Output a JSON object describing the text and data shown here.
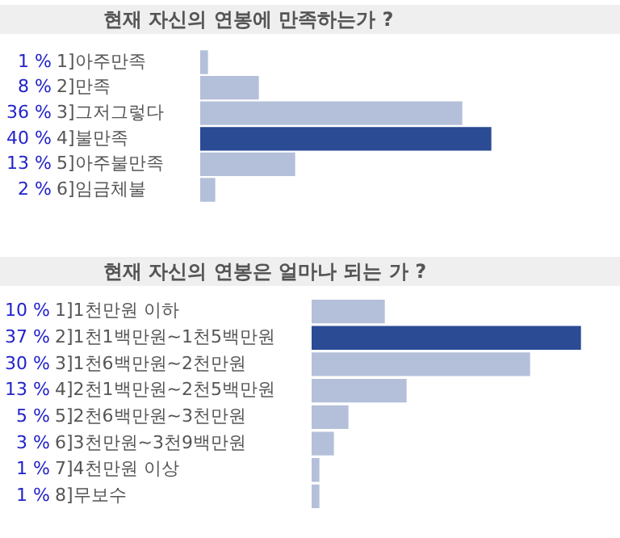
{
  "chart_data": [
    {
      "type": "bar",
      "orientation": "horizontal",
      "title": "현재 자신의 연봉에 만족하는가 ?",
      "categories": [
        "1]아주만족",
        "2]만족",
        "3]그저그렇다",
        "4]불만족",
        "5]아주불만족",
        "6]임금체불"
      ],
      "values": [
        1,
        8,
        36,
        40,
        13,
        2
      ],
      "value_labels": [
        "1 %",
        "8 %",
        "36 %",
        "40 %",
        "13 %",
        "2 %"
      ],
      "colors": [
        "#b4c0da",
        "#b4c0da",
        "#b4c0da",
        "#2b4b94",
        "#b4c0da",
        "#b4c0da"
      ],
      "tick_labels": "y"
    },
    {
      "type": "bar",
      "orientation": "horizontal",
      "title": "현재 자신의 연봉은 얼마나 되는 가 ?",
      "categories": [
        "1]1천만원 이하",
        "2]1천1백만원~1천5백만원",
        "3]1천6백만원~2천만원",
        "4]2천1백만원~2천5백만원",
        "5]2천6백만원~3천만원",
        "6]3천만원~3천9백만원",
        "7]4천만원 이상",
        "8]무보수"
      ],
      "values": [
        10,
        37,
        30,
        13,
        5,
        3,
        1,
        1
      ],
      "value_labels": [
        "10 %",
        "37 %",
        "30 %",
        "13 %",
        "5 %",
        "3 %",
        "1 %",
        "1 %"
      ],
      "colors": [
        "#b4c0da",
        "#2b4b94",
        "#b4c0da",
        "#b4c0da",
        "#b4c0da",
        "#b4c0da",
        "#b4c0da",
        "#b4c0da"
      ],
      "tick_labels": "y"
    }
  ]
}
